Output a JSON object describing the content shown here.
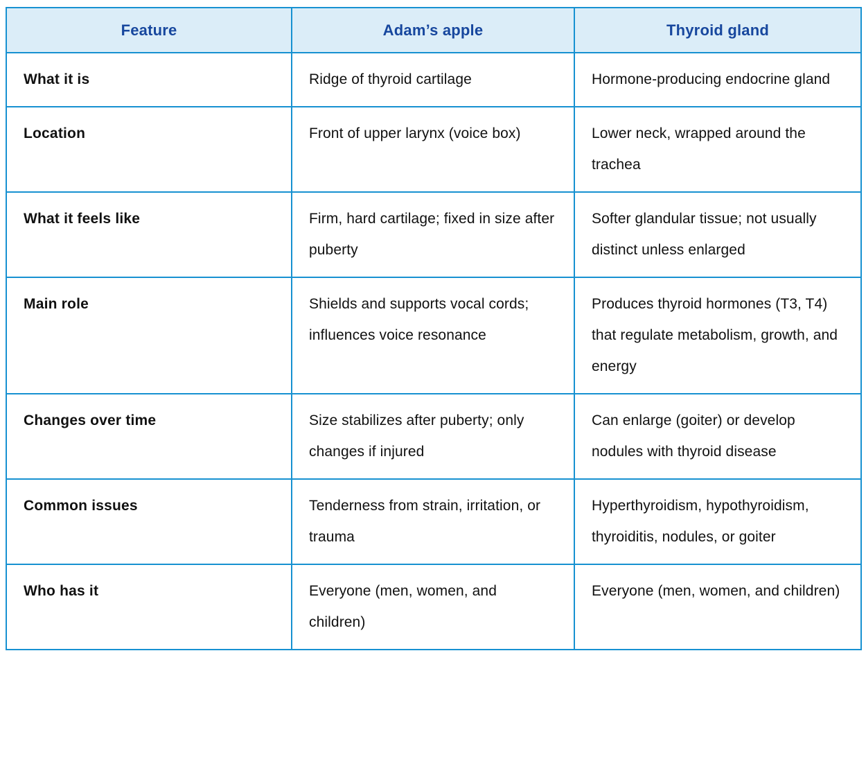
{
  "table": {
    "colors": {
      "border": "#1791d1",
      "header_bg": "#dbedf8",
      "header_text": "#17479e",
      "body_text": "#111111"
    },
    "columns": [
      {
        "label": "Feature"
      },
      {
        "label": "Adam’s apple"
      },
      {
        "label": "Thyroid gland"
      }
    ],
    "rows": [
      {
        "feature": "What it is",
        "adams_apple": "Ridge of thyroid cartilage",
        "thyroid_gland": "Hormone-producing endocrine gland"
      },
      {
        "feature": "Location",
        "adams_apple": "Front of upper larynx (voice box)",
        "thyroid_gland": "Lower neck, wrapped around the trachea"
      },
      {
        "feature": "What it feels like",
        "adams_apple": "Firm, hard cartilage; fixed in size after puberty",
        "thyroid_gland": "Softer glandular tissue; not usually distinct unless enlarged"
      },
      {
        "feature": "Main role",
        "adams_apple": "Shields and supports vocal cords; influences voice resonance",
        "thyroid_gland": "Produces thyroid hormones (T3, T4) that regulate metabolism, growth, and energy"
      },
      {
        "feature": "Changes over time",
        "adams_apple": "Size stabilizes after puberty; only changes if injured",
        "thyroid_gland": "Can enlarge (goiter) or develop nodules with thyroid disease"
      },
      {
        "feature": "Common issues",
        "adams_apple": "Tenderness from strain, irritation, or trauma",
        "thyroid_gland": "Hyperthyroidism, hypothyroidism, thyroiditis, nodules, or goiter"
      },
      {
        "feature": "Who has it",
        "adams_apple": "Everyone (men, women, and children)",
        "thyroid_gland": "Everyone (men, women, and children)"
      }
    ]
  }
}
